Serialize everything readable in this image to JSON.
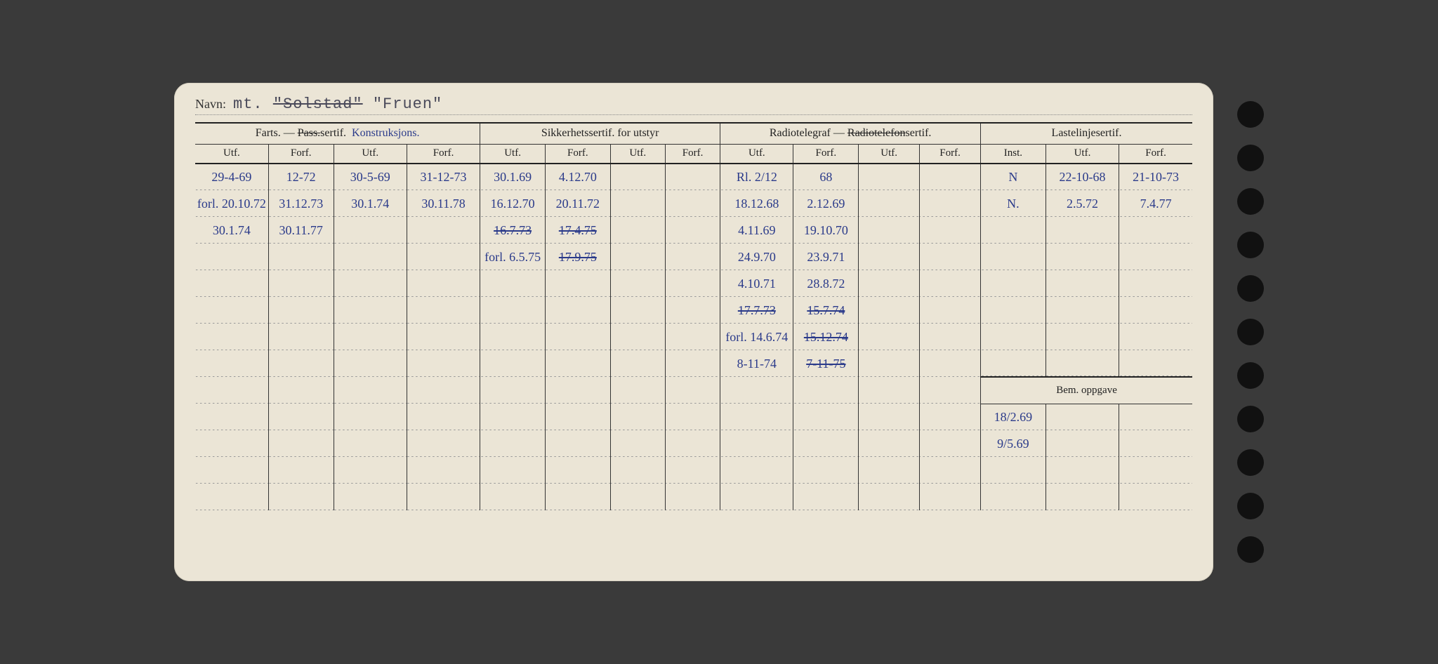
{
  "navn": {
    "label": "Navn:",
    "prefix": "mt.",
    "struck": "\"Solstad\"",
    "current": "\"Fruen\""
  },
  "headers": {
    "g1": "Farts. —",
    "g1_struck": "Pass.",
    "g1_suffix": "sertif.",
    "g1_hand": "Konstruksjons.",
    "g2": "Sikkerhetssertif. for utstyr",
    "g3": "Radiotelegraf —",
    "g3_struck": "Radiotelefon",
    "g3_suffix": "sertif.",
    "g4": "Lastelinjesertif.",
    "utf": "Utf.",
    "forf": "Forf.",
    "inst": "Inst.",
    "bem": "Bem. oppgave"
  },
  "rows": [
    {
      "c0": "29-4-69",
      "c1": "12-72",
      "c2": "30-5-69",
      "c3": "31-12-73",
      "c4": "30.1.69",
      "c5": "4.12.70",
      "c6": "",
      "c7": "",
      "c8": "Rl. 2/12",
      "c9": "68",
      "c10": "",
      "c11": "",
      "c12": "N",
      "c13": "22-10-68",
      "c14": "21-10-73"
    },
    {
      "c0": "forl. 20.10.72",
      "c1": "31.12.73",
      "c2": "30.1.74",
      "c3": "30.11.78",
      "c4": "16.12.70",
      "c5": "20.11.72",
      "c6": "",
      "c7": "",
      "c8": "18.12.68",
      "c9": "2.12.69",
      "c10": "",
      "c11": "",
      "c12": "N.",
      "c13": "2.5.72",
      "c14": "7.4.77"
    },
    {
      "c0": "30.1.74",
      "c1": "30.11.77",
      "c2": "",
      "c3": "",
      "c4": "16.7.73",
      "c4s": true,
      "c5": "17.4.75",
      "c5s": true,
      "c6": "",
      "c7": "",
      "c8": "4.11.69",
      "c9": "19.10.70",
      "c10": "",
      "c11": "",
      "c12": "",
      "c13": "",
      "c14": ""
    },
    {
      "c0": "",
      "c1": "",
      "c2": "",
      "c3": "",
      "c4": "forl. 6.5.75",
      "c5": "17.9.75",
      "c5s": true,
      "c6": "",
      "c7": "",
      "c8": "24.9.70",
      "c9": "23.9.71",
      "c10": "",
      "c11": "",
      "c12": "",
      "c13": "",
      "c14": ""
    },
    {
      "c0": "",
      "c1": "",
      "c2": "",
      "c3": "",
      "c4": "",
      "c5": "",
      "c6": "",
      "c7": "",
      "c8": "4.10.71",
      "c9": "28.8.72",
      "c10": "",
      "c11": "",
      "c12": "",
      "c13": "",
      "c14": ""
    },
    {
      "c0": "",
      "c1": "",
      "c2": "",
      "c3": "",
      "c4": "",
      "c5": "",
      "c6": "",
      "c7": "",
      "c8": "17.7.73",
      "c8s": true,
      "c9": "15.7.74",
      "c9s": true,
      "c10": "",
      "c11": "",
      "c12": "",
      "c13": "",
      "c14": ""
    },
    {
      "c0": "",
      "c1": "",
      "c2": "",
      "c3": "",
      "c4": "",
      "c5": "",
      "c6": "",
      "c7": "",
      "c8": "forl. 14.6.74",
      "c9": "15.12.74",
      "c9s": true,
      "c10": "",
      "c11": "",
      "c12": "",
      "c13": "",
      "c14": ""
    },
    {
      "c0": "",
      "c1": "",
      "c2": "",
      "c3": "",
      "c4": "",
      "c5": "",
      "c6": "",
      "c7": "",
      "c8": "8-11-74",
      "c9": "7-11-75",
      "c9s": true,
      "c10": "",
      "c11": "",
      "c12": "",
      "c13": "",
      "c14": ""
    },
    {
      "c0": "",
      "c1": "",
      "c2": "",
      "c3": "",
      "c4": "",
      "c5": "",
      "c6": "",
      "c7": "",
      "c8": "",
      "c9": "",
      "c10": "",
      "c11": "",
      "bem": true
    },
    {
      "c0": "",
      "c1": "",
      "c2": "",
      "c3": "",
      "c4": "",
      "c5": "",
      "c6": "",
      "c7": "",
      "c8": "",
      "c9": "",
      "c10": "",
      "c11": "",
      "c12": "18/2.69",
      "c13": "",
      "c14": ""
    },
    {
      "c0": "",
      "c1": "",
      "c2": "",
      "c3": "",
      "c4": "",
      "c5": "",
      "c6": "",
      "c7": "",
      "c8": "",
      "c9": "",
      "c10": "",
      "c11": "",
      "c12": "9/5.69",
      "c13": "",
      "c14": ""
    },
    {
      "c0": "",
      "c1": "",
      "c2": "",
      "c3": "",
      "c4": "",
      "c5": "",
      "c6": "",
      "c7": "",
      "c8": "",
      "c9": "",
      "c10": "",
      "c11": "",
      "c12": "",
      "c13": "",
      "c14": ""
    },
    {
      "c0": "",
      "c1": "",
      "c2": "",
      "c3": "",
      "c4": "",
      "c5": "",
      "c6": "",
      "c7": "",
      "c8": "",
      "c9": "",
      "c10": "",
      "c11": "",
      "c12": "",
      "c13": "",
      "c14": ""
    }
  ]
}
